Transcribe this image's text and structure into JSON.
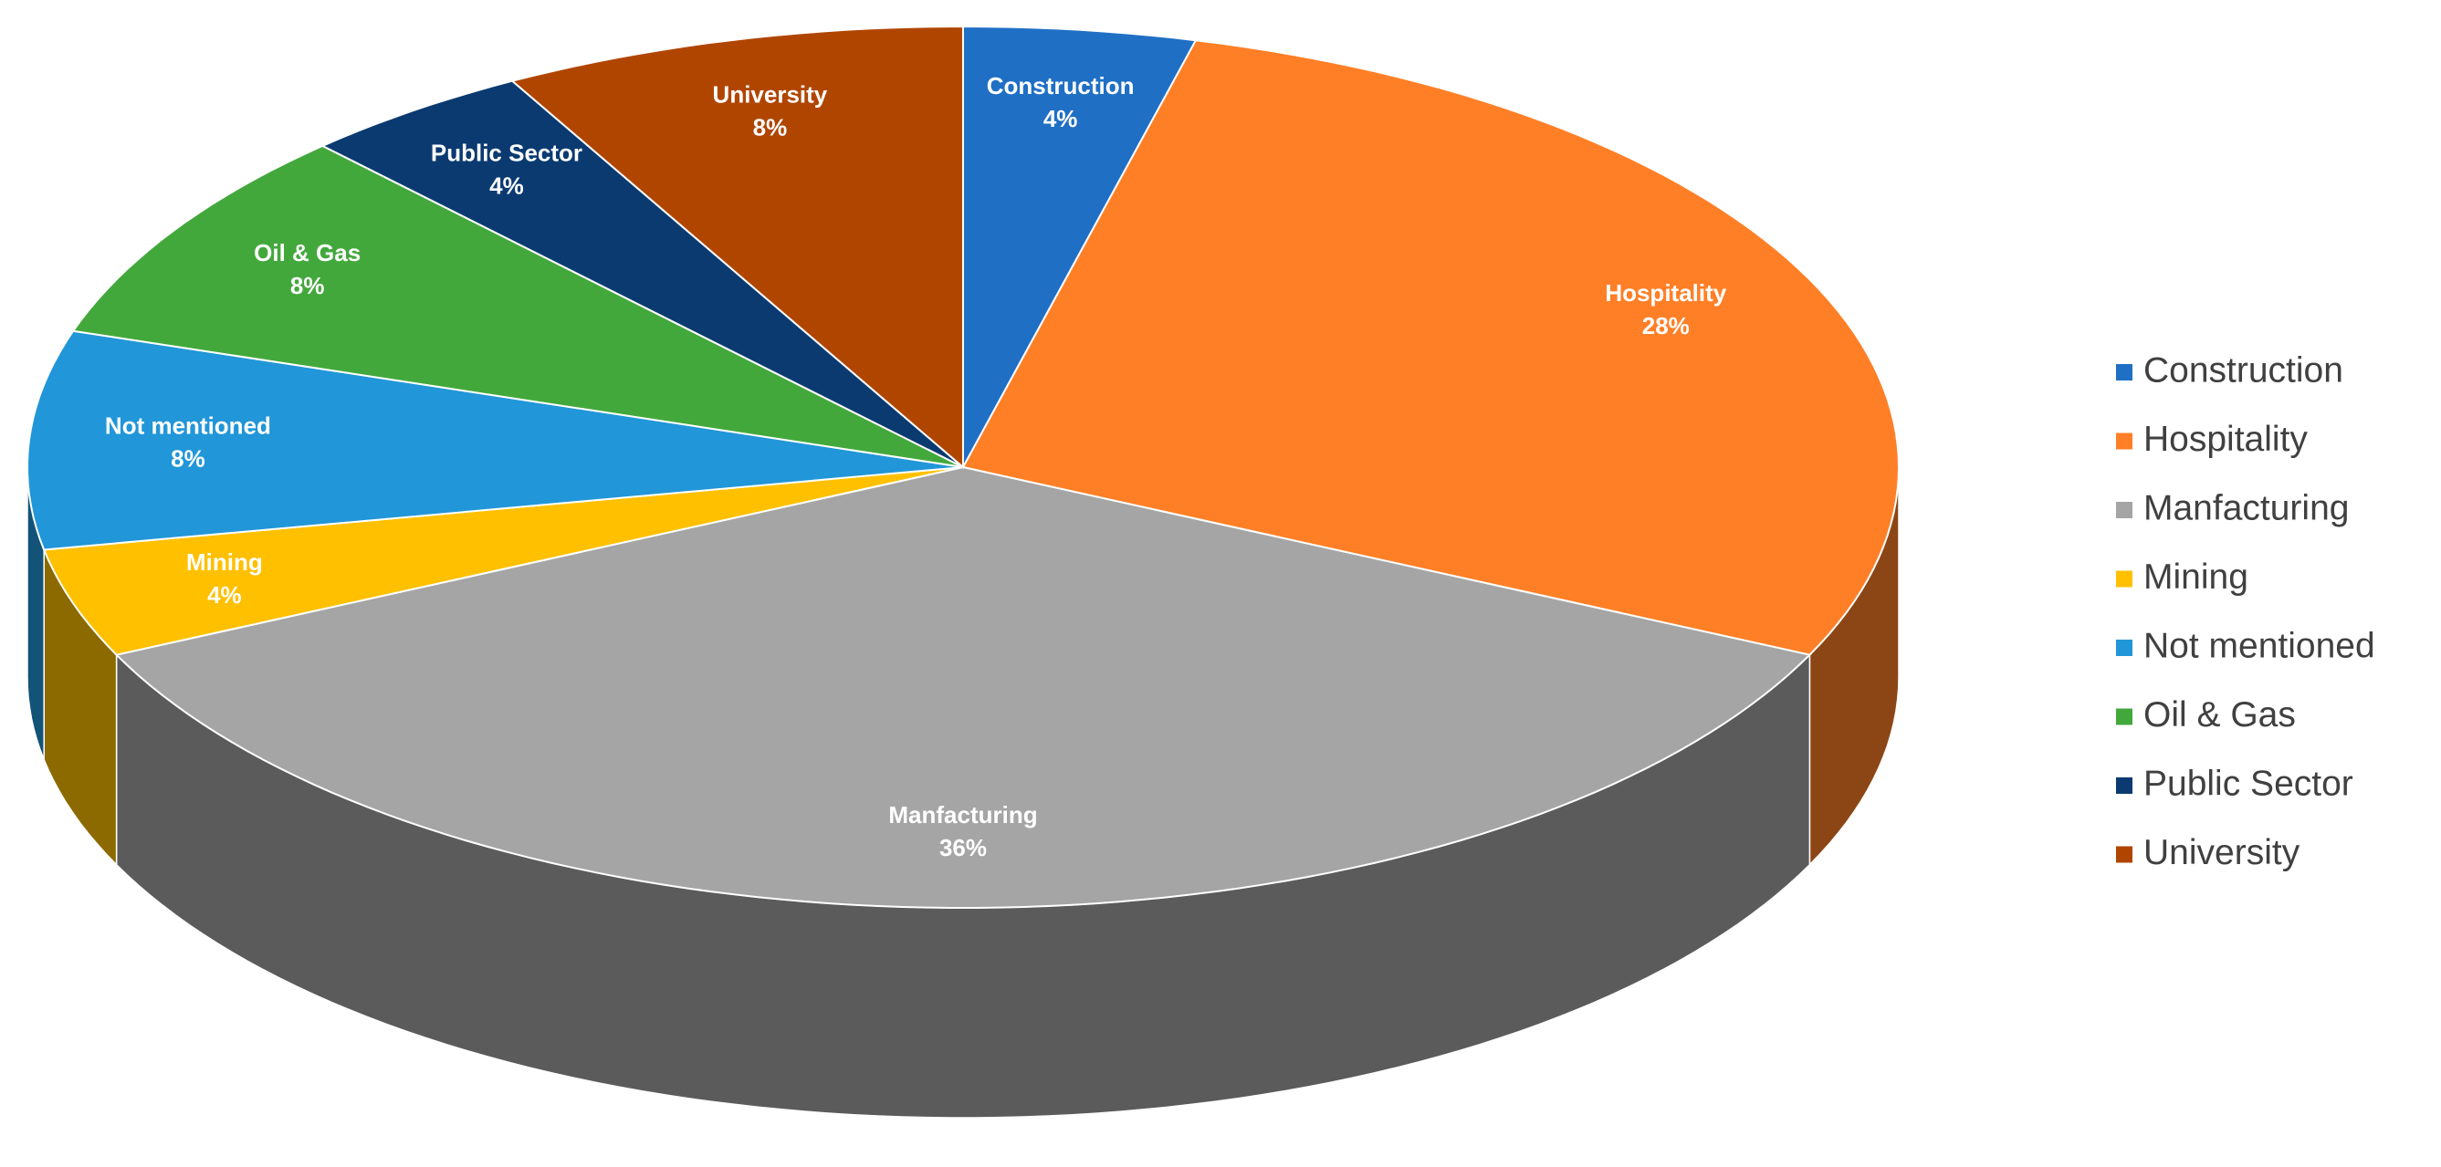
{
  "chart_data": {
    "type": "pie",
    "categories": [
      "Construction",
      "Hospitality",
      "Manfacturing",
      "Mining",
      "Not mentioned",
      "Oil & Gas",
      "Public Sector",
      "University"
    ],
    "values": [
      4,
      28,
      36,
      4,
      8,
      8,
      4,
      8
    ],
    "value_labels": [
      "4%",
      "28%",
      "36%",
      "4%",
      "8%",
      "8%",
      "4%",
      "8%"
    ],
    "colors": [
      "#1f6fc5",
      "#ff7f27",
      "#a5a5a5",
      "#ffc000",
      "#2196d8",
      "#43a83c",
      "#0a3a70",
      "#b04500"
    ],
    "legend": "right"
  }
}
